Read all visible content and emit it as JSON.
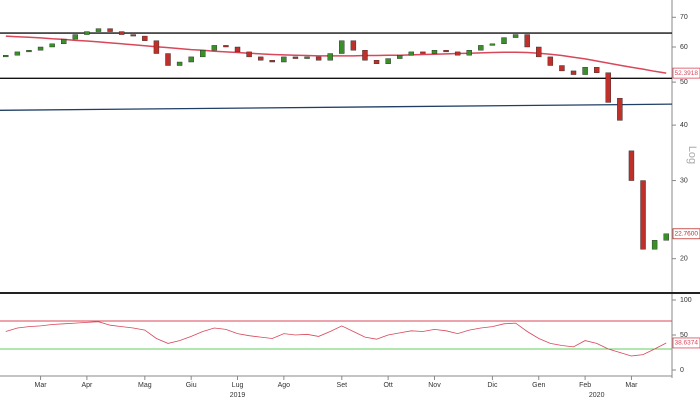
{
  "chart_data": [
    {
      "type": "candlestick",
      "log": true,
      "scale_label": "Log",
      "categories": [
        null,
        null,
        null,
        "Mar",
        null,
        null,
        null,
        "Apr",
        null,
        null,
        null,
        null,
        "Mag",
        null,
        null,
        null,
        "Giu",
        null,
        null,
        null,
        "Lug",
        null,
        null,
        null,
        "Ago",
        null,
        null,
        null,
        null,
        "Set",
        null,
        null,
        null,
        "Ott",
        null,
        null,
        null,
        "Nov",
        null,
        null,
        null,
        null,
        "Dic",
        null,
        null,
        null,
        "Gen",
        null,
        null,
        null,
        "Feb",
        null,
        null,
        null,
        "Mar",
        null,
        null,
        null
      ],
      "years": [
        null,
        null,
        null,
        null,
        null,
        null,
        null,
        null,
        null,
        null,
        null,
        null,
        null,
        null,
        null,
        null,
        null,
        null,
        null,
        null,
        "2019",
        null,
        null,
        null,
        null,
        null,
        null,
        null,
        null,
        null,
        null,
        null,
        null,
        null,
        null,
        null,
        null,
        null,
        null,
        null,
        null,
        null,
        null,
        null,
        null,
        null,
        null,
        null,
        null,
        null,
        null,
        "2020",
        null,
        null,
        null,
        null,
        null,
        null
      ],
      "open": [
        57,
        57.5,
        58.5,
        59,
        60,
        61,
        62.5,
        64,
        65,
        66,
        65,
        64,
        63.5,
        62,
        58,
        54.5,
        55.5,
        57,
        59,
        60.5,
        60,
        58.5,
        57,
        56,
        55.5,
        57,
        56.5,
        57,
        56,
        58,
        62,
        59,
        56,
        55,
        56.5,
        57.5,
        58.5,
        58,
        59,
        58.5,
        57.5,
        59,
        60.5,
        61,
        63,
        64,
        60,
        57,
        54.5,
        53,
        52,
        54,
        52.5,
        46,
        35,
        30,
        21,
        22
      ],
      "close": [
        57.5,
        58.5,
        59,
        60,
        61,
        62.5,
        64,
        65,
        66,
        65,
        64,
        63.5,
        62,
        58,
        54.5,
        55.5,
        57,
        59,
        60.5,
        60,
        58.5,
        57,
        56,
        55.5,
        57,
        56.5,
        57,
        56,
        58,
        62,
        59,
        56,
        55,
        56.5,
        57.5,
        58.5,
        58,
        59,
        58.5,
        57.5,
        59,
        60.5,
        61,
        63,
        64,
        60,
        57,
        54.5,
        53,
        52,
        54,
        52.5,
        45,
        41,
        30,
        21,
        22,
        22.76
      ],
      "up_color": "#3a8f2a",
      "down_color": "#c0302a",
      "ma": {
        "color": "#d9475a",
        "values": [
          63.5,
          63.3,
          63.1,
          62.9,
          62.6,
          62.4,
          62.1,
          61.9,
          61.6,
          61.3,
          61,
          60.7,
          60.4,
          60.1,
          59.8,
          59.5,
          59.2,
          59,
          58.7,
          58.5,
          58.3,
          58.1,
          57.9,
          57.7,
          57.6,
          57.5,
          57.4,
          57.3,
          57.3,
          57.3,
          57.3,
          57.4,
          57.4,
          57.5,
          57.5,
          57.6,
          57.7,
          57.8,
          57.9,
          58,
          58.1,
          58.2,
          58.3,
          58.4,
          58.4,
          58.3,
          58.1,
          57.8,
          57.4,
          56.9,
          56.4,
          55.8,
          55.2,
          54.6,
          54,
          53.5,
          52.9,
          52.3918
        ]
      },
      "trend": {
        "color": "#1f3f66",
        "values": [
          43.2,
          44.6
        ]
      },
      "levels": [
        64.5,
        51
      ],
      "ylim": [
        17,
        75
      ],
      "yticks": [
        20,
        30,
        40,
        50,
        60,
        70
      ],
      "tags": [
        {
          "value": 52.3918,
          "label": "52.3918"
        },
        {
          "value": 22.76,
          "label": "22.7600"
        }
      ]
    },
    {
      "type": "line",
      "color": "#d9475a",
      "values": [
        55,
        60,
        62,
        63,
        65,
        66,
        67,
        68,
        69,
        64,
        62,
        60,
        57,
        45,
        38,
        42,
        48,
        55,
        60,
        58,
        52,
        49,
        47,
        45,
        52,
        50,
        51,
        48,
        55,
        63,
        55,
        47,
        44,
        50,
        53,
        56,
        55,
        58,
        56,
        52,
        57,
        60,
        62,
        66,
        67,
        55,
        45,
        38,
        35,
        33,
        42,
        38,
        30,
        25,
        20,
        22,
        30,
        38.6374
      ],
      "levels": [
        {
          "value": 70,
          "color": "#d9475a"
        },
        {
          "value": 30,
          "color": "#5fcf5f"
        }
      ],
      "ylim": [
        0,
        100
      ],
      "yticks": [
        0,
        50,
        100
      ],
      "tags": [
        {
          "value": 38.6374,
          "label": "38.6374"
        }
      ]
    }
  ]
}
